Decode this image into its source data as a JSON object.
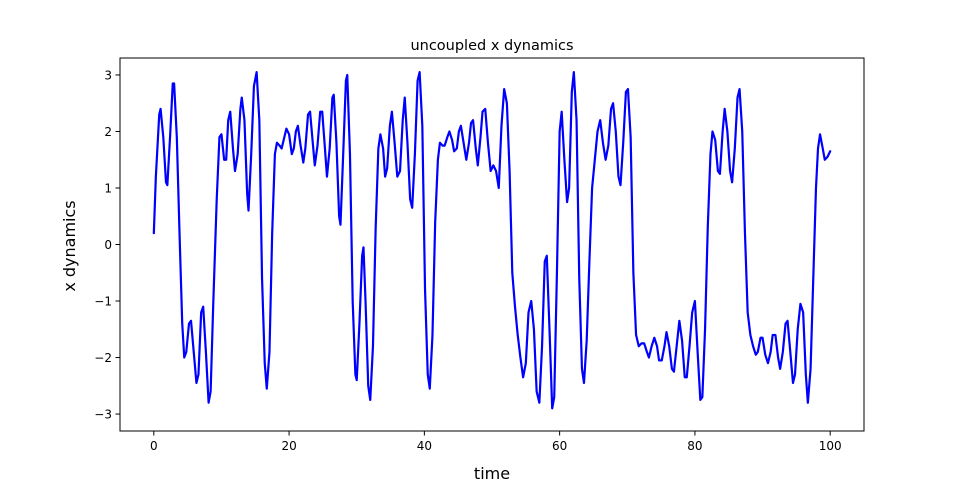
{
  "chart_data": {
    "type": "line",
    "title": "uncoupled x dynamics",
    "xlabel": "time",
    "ylabel": "x dynamics",
    "xlim": [
      -5,
      105
    ],
    "ylim": [
      -3.3,
      3.3
    ],
    "xticks": [
      0,
      20,
      40,
      60,
      80,
      100
    ],
    "yticks": [
      -3,
      -2,
      -1,
      0,
      1,
      2,
      3
    ],
    "xtick_labels": [
      "0",
      "20",
      "40",
      "60",
      "80",
      "100"
    ],
    "ytick_labels": [
      "−3",
      "−2",
      "−1",
      "0",
      "1",
      "2",
      "3"
    ],
    "grid": false,
    "line_color": "#0000ff",
    "series": [
      {
        "points": [
          [
            0.0,
            0.2
          ],
          [
            0.3,
            1.2
          ],
          [
            0.8,
            2.3
          ],
          [
            1.0,
            2.4
          ],
          [
            1.4,
            1.9
          ],
          [
            1.8,
            1.1
          ],
          [
            2.0,
            1.05
          ],
          [
            2.4,
            1.9
          ],
          [
            2.8,
            2.85
          ],
          [
            3.0,
            2.85
          ],
          [
            3.4,
            1.9
          ],
          [
            3.8,
            0.2
          ],
          [
            4.2,
            -1.4
          ],
          [
            4.5,
            -2.0
          ],
          [
            4.8,
            -1.9
          ],
          [
            5.2,
            -1.4
          ],
          [
            5.5,
            -1.35
          ],
          [
            5.9,
            -1.9
          ],
          [
            6.3,
            -2.45
          ],
          [
            6.6,
            -2.3
          ],
          [
            7.0,
            -1.2
          ],
          [
            7.3,
            -1.1
          ],
          [
            7.7,
            -1.9
          ],
          [
            8.1,
            -2.8
          ],
          [
            8.4,
            -2.6
          ],
          [
            8.8,
            -1.0
          ],
          [
            9.3,
            0.8
          ],
          [
            9.7,
            1.9
          ],
          [
            10.0,
            1.95
          ],
          [
            10.4,
            1.5
          ],
          [
            10.7,
            1.5
          ],
          [
            11.0,
            2.2
          ],
          [
            11.3,
            2.35
          ],
          [
            11.7,
            1.7
          ],
          [
            12.0,
            1.3
          ],
          [
            12.4,
            1.6
          ],
          [
            12.8,
            2.4
          ],
          [
            13.0,
            2.6
          ],
          [
            13.4,
            2.2
          ],
          [
            13.8,
            0.9
          ],
          [
            14.0,
            0.6
          ],
          [
            14.4,
            1.6
          ],
          [
            14.8,
            2.8
          ],
          [
            15.2,
            3.05
          ],
          [
            15.6,
            2.2
          ],
          [
            16.0,
            -0.6
          ],
          [
            16.4,
            -2.1
          ],
          [
            16.7,
            -2.55
          ],
          [
            17.1,
            -1.9
          ],
          [
            17.5,
            0.2
          ],
          [
            17.9,
            1.6
          ],
          [
            18.2,
            1.8
          ],
          [
            18.6,
            1.75
          ],
          [
            18.9,
            1.7
          ],
          [
            19.3,
            1.9
          ],
          [
            19.6,
            2.05
          ],
          [
            20.0,
            1.95
          ],
          [
            20.4,
            1.6
          ],
          [
            20.7,
            1.7
          ],
          [
            21.0,
            2.0
          ],
          [
            21.3,
            2.1
          ],
          [
            21.7,
            1.75
          ],
          [
            22.1,
            1.45
          ],
          [
            22.4,
            1.7
          ],
          [
            22.8,
            2.3
          ],
          [
            23.1,
            2.35
          ],
          [
            23.5,
            1.8
          ],
          [
            23.8,
            1.4
          ],
          [
            24.2,
            1.75
          ],
          [
            24.6,
            2.35
          ],
          [
            24.9,
            2.35
          ],
          [
            25.3,
            1.7
          ],
          [
            25.6,
            1.2
          ],
          [
            26.0,
            1.7
          ],
          [
            26.4,
            2.6
          ],
          [
            26.6,
            2.65
          ],
          [
            27.0,
            1.8
          ],
          [
            27.4,
            0.5
          ],
          [
            27.6,
            0.35
          ],
          [
            28.0,
            1.6
          ],
          [
            28.4,
            2.9
          ],
          [
            28.6,
            3.0
          ],
          [
            29.0,
            1.6
          ],
          [
            29.4,
            -1.0
          ],
          [
            29.8,
            -2.3
          ],
          [
            30.0,
            -2.4
          ],
          [
            30.4,
            -1.4
          ],
          [
            30.8,
            -0.2
          ],
          [
            31.0,
            -0.05
          ],
          [
            31.3,
            -1.0
          ],
          [
            31.7,
            -2.5
          ],
          [
            32.0,
            -2.75
          ],
          [
            32.4,
            -1.8
          ],
          [
            32.8,
            0.3
          ],
          [
            33.2,
            1.7
          ],
          [
            33.5,
            1.95
          ],
          [
            33.9,
            1.7
          ],
          [
            34.2,
            1.2
          ],
          [
            34.5,
            1.35
          ],
          [
            34.9,
            2.1
          ],
          [
            35.2,
            2.35
          ],
          [
            35.6,
            1.8
          ],
          [
            36.0,
            1.2
          ],
          [
            36.4,
            1.3
          ],
          [
            36.8,
            2.2
          ],
          [
            37.1,
            2.6
          ],
          [
            37.5,
            1.8
          ],
          [
            37.9,
            0.8
          ],
          [
            38.2,
            0.65
          ],
          [
            38.6,
            1.6
          ],
          [
            39.0,
            2.9
          ],
          [
            39.3,
            3.05
          ],
          [
            39.7,
            2.1
          ],
          [
            40.1,
            -0.8
          ],
          [
            40.5,
            -2.3
          ],
          [
            40.8,
            -2.55
          ],
          [
            41.2,
            -1.6
          ],
          [
            41.6,
            0.4
          ],
          [
            42.0,
            1.5
          ],
          [
            42.3,
            1.8
          ],
          [
            42.7,
            1.75
          ],
          [
            43.0,
            1.75
          ],
          [
            43.4,
            1.9
          ],
          [
            43.7,
            2.0
          ],
          [
            44.1,
            1.85
          ],
          [
            44.4,
            1.65
          ],
          [
            44.8,
            1.7
          ],
          [
            45.1,
            2.0
          ],
          [
            45.4,
            2.1
          ],
          [
            45.8,
            1.8
          ],
          [
            46.2,
            1.5
          ],
          [
            46.6,
            1.8
          ],
          [
            46.9,
            2.15
          ],
          [
            47.2,
            2.2
          ],
          [
            47.6,
            1.7
          ],
          [
            47.9,
            1.4
          ],
          [
            48.3,
            1.9
          ],
          [
            48.6,
            2.35
          ],
          [
            49.0,
            2.4
          ],
          [
            49.4,
            1.8
          ],
          [
            49.8,
            1.3
          ],
          [
            50.2,
            1.4
          ],
          [
            50.6,
            1.3
          ],
          [
            51.0,
            1.0
          ],
          [
            51.4,
            2.1
          ],
          [
            51.8,
            2.75
          ],
          [
            52.2,
            2.5
          ],
          [
            52.6,
            1.3
          ],
          [
            53.0,
            -0.5
          ],
          [
            53.4,
            -1.1
          ],
          [
            53.8,
            -1.6
          ],
          [
            54.2,
            -2.0
          ],
          [
            54.6,
            -2.35
          ],
          [
            55.0,
            -2.1
          ],
          [
            55.4,
            -1.2
          ],
          [
            55.8,
            -1.0
          ],
          [
            56.2,
            -1.5
          ],
          [
            56.6,
            -2.6
          ],
          [
            57.0,
            -2.8
          ],
          [
            57.4,
            -1.8
          ],
          [
            57.8,
            -0.3
          ],
          [
            58.1,
            -0.2
          ],
          [
            58.5,
            -1.5
          ],
          [
            58.9,
            -2.9
          ],
          [
            59.2,
            -2.7
          ],
          [
            59.6,
            -0.5
          ],
          [
            60.0,
            2.0
          ],
          [
            60.3,
            2.35
          ],
          [
            60.7,
            1.5
          ],
          [
            61.1,
            0.75
          ],
          [
            61.4,
            1.0
          ],
          [
            61.8,
            2.7
          ],
          [
            62.1,
            3.05
          ],
          [
            62.5,
            2.2
          ],
          [
            62.9,
            -0.6
          ],
          [
            63.3,
            -2.2
          ],
          [
            63.6,
            -2.45
          ],
          [
            64.0,
            -1.7
          ],
          [
            64.4,
            -0.3
          ],
          [
            64.8,
            1.0
          ],
          [
            65.2,
            1.5
          ],
          [
            65.6,
            2.0
          ],
          [
            66.0,
            2.2
          ],
          [
            66.4,
            1.8
          ],
          [
            66.8,
            1.5
          ],
          [
            67.2,
            1.75
          ],
          [
            67.6,
            2.4
          ],
          [
            67.9,
            2.5
          ],
          [
            68.3,
            2.0
          ],
          [
            68.7,
            1.2
          ],
          [
            69.0,
            1.05
          ],
          [
            69.4,
            1.8
          ],
          [
            69.8,
            2.7
          ],
          [
            70.1,
            2.75
          ],
          [
            70.5,
            1.9
          ],
          [
            70.9,
            -0.5
          ],
          [
            71.3,
            -1.6
          ],
          [
            71.7,
            -1.8
          ],
          [
            72.1,
            -1.75
          ],
          [
            72.5,
            -1.75
          ],
          [
            72.9,
            -1.9
          ],
          [
            73.2,
            -2.0
          ],
          [
            73.6,
            -1.8
          ],
          [
            74.0,
            -1.65
          ],
          [
            74.4,
            -1.8
          ],
          [
            74.7,
            -2.05
          ],
          [
            75.1,
            -2.05
          ],
          [
            75.5,
            -1.8
          ],
          [
            75.8,
            -1.55
          ],
          [
            76.2,
            -1.8
          ],
          [
            76.6,
            -2.2
          ],
          [
            76.9,
            -2.25
          ],
          [
            77.3,
            -1.8
          ],
          [
            77.7,
            -1.35
          ],
          [
            78.1,
            -1.7
          ],
          [
            78.5,
            -2.35
          ],
          [
            78.8,
            -2.35
          ],
          [
            79.2,
            -1.8
          ],
          [
            79.6,
            -1.2
          ],
          [
            80.0,
            -1.0
          ],
          [
            80.4,
            -1.9
          ],
          [
            80.8,
            -2.75
          ],
          [
            81.1,
            -2.7
          ],
          [
            81.5,
            -1.5
          ],
          [
            81.9,
            0.3
          ],
          [
            82.3,
            1.6
          ],
          [
            82.6,
            2.0
          ],
          [
            83.0,
            1.85
          ],
          [
            83.4,
            1.3
          ],
          [
            83.7,
            1.25
          ],
          [
            84.1,
            2.0
          ],
          [
            84.4,
            2.4
          ],
          [
            84.8,
            2.0
          ],
          [
            85.2,
            1.3
          ],
          [
            85.5,
            1.1
          ],
          [
            85.9,
            1.7
          ],
          [
            86.3,
            2.6
          ],
          [
            86.6,
            2.75
          ],
          [
            87.0,
            2.0
          ],
          [
            87.4,
            0.2
          ],
          [
            87.8,
            -1.2
          ],
          [
            88.2,
            -1.6
          ],
          [
            88.6,
            -1.8
          ],
          [
            89.0,
            -1.95
          ],
          [
            89.3,
            -1.9
          ],
          [
            89.7,
            -1.65
          ],
          [
            90.0,
            -1.65
          ],
          [
            90.4,
            -1.95
          ],
          [
            90.8,
            -2.1
          ],
          [
            91.2,
            -1.9
          ],
          [
            91.5,
            -1.6
          ],
          [
            91.9,
            -1.6
          ],
          [
            92.3,
            -2.0
          ],
          [
            92.6,
            -2.2
          ],
          [
            93.0,
            -1.9
          ],
          [
            93.4,
            -1.4
          ],
          [
            93.7,
            -1.35
          ],
          [
            94.1,
            -1.9
          ],
          [
            94.5,
            -2.45
          ],
          [
            94.8,
            -2.3
          ],
          [
            95.2,
            -1.5
          ],
          [
            95.6,
            -1.05
          ],
          [
            96.0,
            -1.2
          ],
          [
            96.4,
            -2.3
          ],
          [
            96.7,
            -2.8
          ],
          [
            97.1,
            -2.2
          ],
          [
            97.5,
            -0.6
          ],
          [
            97.9,
            1.0
          ],
          [
            98.2,
            1.7
          ],
          [
            98.5,
            1.95
          ],
          [
            98.9,
            1.7
          ],
          [
            99.2,
            1.5
          ],
          [
            99.6,
            1.55
          ],
          [
            100.0,
            1.65
          ]
        ]
      }
    ]
  }
}
